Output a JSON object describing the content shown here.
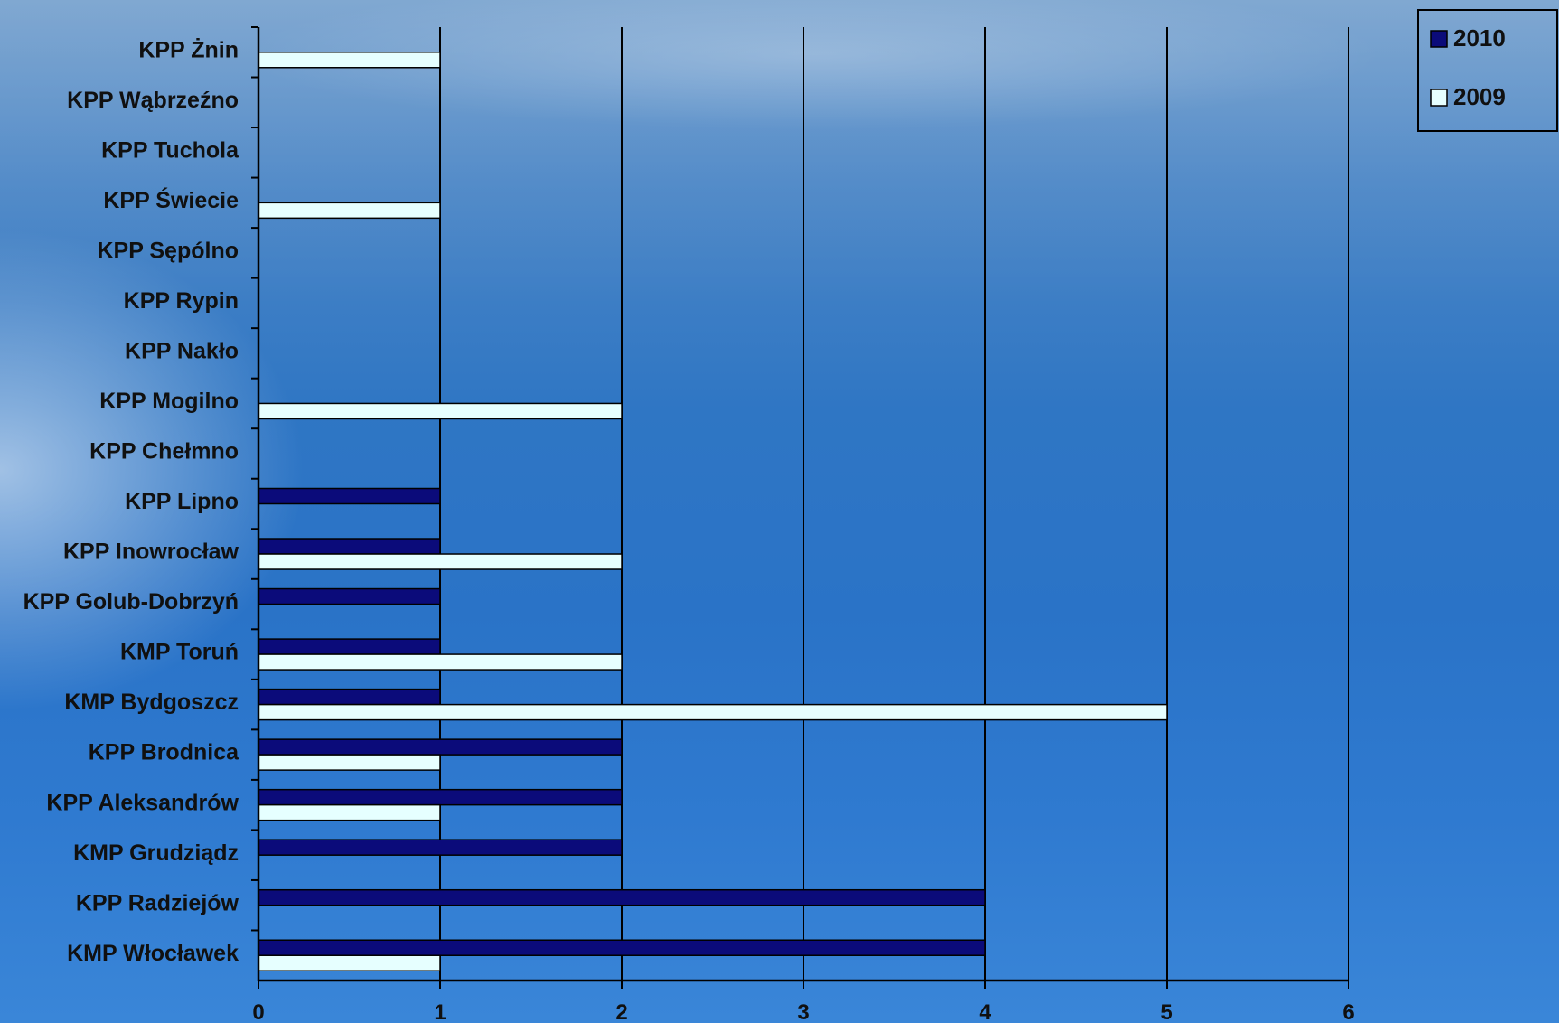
{
  "chart_data": {
    "type": "bar",
    "orientation": "horizontal",
    "categories": [
      "KMP Włocławek",
      "KPP Radziejów",
      "KMP Grudziądz",
      "KPP Aleksandrów",
      "KPP Brodnica",
      "KMP Bydgoszcz",
      "KMP Toruń",
      "KPP Golub-Dobrzyń",
      "KPP Inowrocław",
      "KPP Lipno",
      "KPP Chełmno",
      "KPP Mogilno",
      "KPP Nakło",
      "KPP Rypin",
      "KPP Sępólno",
      "KPP Świecie",
      "KPP Tuchola",
      "KPP Wąbrzeźno",
      "KPP Żnin"
    ],
    "series": [
      {
        "name": "2010",
        "color": "#0b0b7a",
        "values": [
          4,
          4,
          2,
          2,
          2,
          1,
          1,
          1,
          1,
          1,
          0,
          0,
          0,
          0,
          0,
          0,
          0,
          0,
          0
        ]
      },
      {
        "name": "2009",
        "color": "#e6ffff",
        "values": [
          1,
          0,
          0,
          1,
          1,
          5,
          2,
          0,
          2,
          0,
          0,
          2,
          0,
          0,
          0,
          1,
          0,
          0,
          1
        ]
      }
    ],
    "xlim": [
      0,
      6
    ],
    "xticks": [
      "0",
      "1",
      "2",
      "3",
      "4",
      "5",
      "6"
    ],
    "grid": true,
    "legend": "top-right",
    "title": "",
    "xlabel": "",
    "ylabel": ""
  }
}
